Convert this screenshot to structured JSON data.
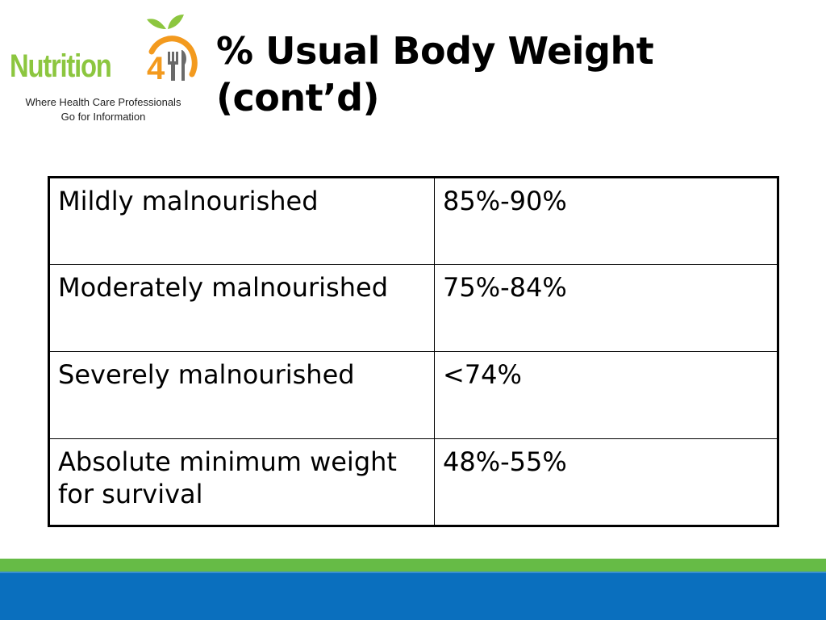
{
  "logo": {
    "brand": "Nutrition411",
    "brand_text": "Nutrition",
    "brand_number": "411",
    "tagline_line1": "Where Health Care Professionals",
    "tagline_line2": "Go for Information",
    "colors": {
      "green": "#8cc63f",
      "orange": "#f39a1e",
      "fork": "#6a6a6a"
    }
  },
  "title": {
    "line1": "% Usual Body Weight",
    "line2": "(cont’d)"
  },
  "table": {
    "rows": [
      {
        "label": "Mildly malnourished",
        "value": "85%-90%"
      },
      {
        "label": "Moderately malnourished",
        "value": "75%-84%"
      },
      {
        "label": "Severely malnourished",
        "value": "<74%"
      },
      {
        "label_line1": "Absolute minimum weight",
        "label_line2": "for survival",
        "value": "48%-55%"
      }
    ]
  },
  "footer": {
    "green_bar_color": "#66bb46",
    "blue_bar_color": "#0a6fbe"
  }
}
